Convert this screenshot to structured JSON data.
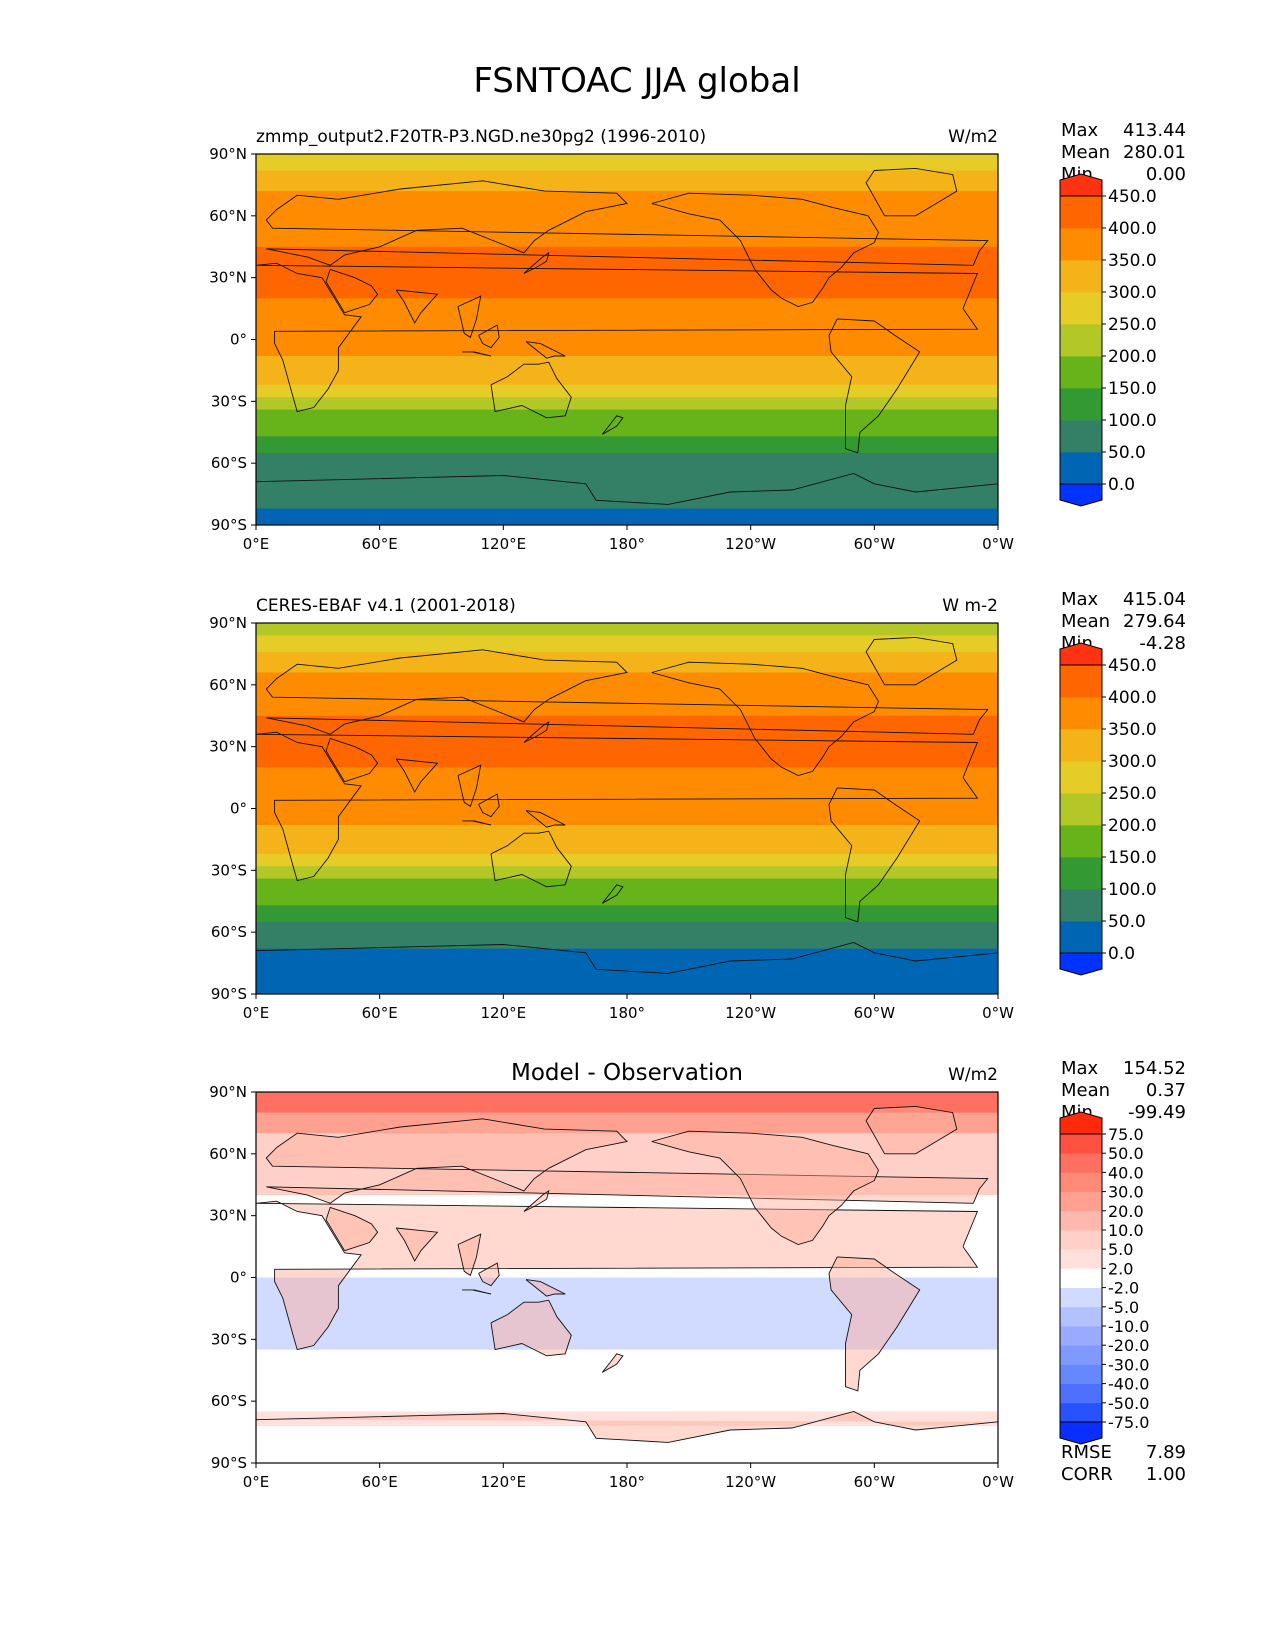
{
  "title": "FSNTOAC JJA global",
  "lat_labels": [
    "90°N",
    "60°N",
    "30°N",
    "0°",
    "30°S",
    "60°S",
    "90°S"
  ],
  "lon_labels": [
    "0°E",
    "60°E",
    "120°E",
    "180°",
    "120°W",
    "60°W",
    "0°W"
  ],
  "chart_data": [
    {
      "type": "heatmap",
      "panel": "model",
      "title": "zmmp_output2.F20TR-P3.NGD.ne30pg2 (1996-2010)",
      "units": "W/m2",
      "stats": [
        {
          "label": "Max",
          "value": "413.44"
        },
        {
          "label": "Mean",
          "value": "280.01"
        },
        {
          "label": "Min",
          "value": "0.00"
        }
      ],
      "colorbar": {
        "levels": [
          "0.0",
          "50.0",
          "100.0",
          "150.0",
          "200.0",
          "250.0",
          "300.0",
          "350.0",
          "400.0",
          "450.0"
        ],
        "colors": [
          "#0033ff",
          "#0066b3",
          "#338066",
          "#339933",
          "#66b31a",
          "#b3c726",
          "#e6cc26",
          "#f5b31a",
          "#ff8c00",
          "#ff6600",
          "#ff3311"
        ]
      },
      "zonal_band_values": [
        {
          "lat": [
            82,
            90
          ],
          "value": 275
        },
        {
          "lat": [
            72,
            82
          ],
          "value": 320
        },
        {
          "lat": [
            58,
            72
          ],
          "value": 360
        },
        {
          "lat": [
            45,
            58
          ],
          "value": 390
        },
        {
          "lat": [
            20,
            45
          ],
          "value": 410
        },
        {
          "lat": [
            8,
            20
          ],
          "value": 385
        },
        {
          "lat": [
            -8,
            8
          ],
          "value": 375
        },
        {
          "lat": [
            -15,
            -8
          ],
          "value": 340
        },
        {
          "lat": [
            -22,
            -15
          ],
          "value": 305
        },
        {
          "lat": [
            -28,
            -22
          ],
          "value": 270
        },
        {
          "lat": [
            -34,
            -28
          ],
          "value": 225
        },
        {
          "lat": [
            -40,
            -34
          ],
          "value": 185
        },
        {
          "lat": [
            -47,
            -40
          ],
          "value": 160
        },
        {
          "lat": [
            -55,
            -47
          ],
          "value": 120
        },
        {
          "lat": [
            -82,
            -55
          ],
          "value": 70
        },
        {
          "lat": [
            -90,
            -82
          ],
          "value": 20
        }
      ]
    },
    {
      "type": "heatmap",
      "panel": "observation",
      "title": "CERES-EBAF v4.1 (2001-2018)",
      "units": "W m-2",
      "stats": [
        {
          "label": "Max",
          "value": "415.04"
        },
        {
          "label": "Mean",
          "value": "279.64"
        },
        {
          "label": "Min",
          "value": "-4.28"
        }
      ],
      "colorbar": {
        "levels": [
          "0.0",
          "50.0",
          "100.0",
          "150.0",
          "200.0",
          "250.0",
          "300.0",
          "350.0",
          "400.0",
          "450.0"
        ],
        "colors": [
          "#0033ff",
          "#0066b3",
          "#338066",
          "#339933",
          "#66b31a",
          "#b3c726",
          "#e6cc26",
          "#f5b31a",
          "#ff8c00",
          "#ff6600",
          "#ff3311"
        ]
      },
      "zonal_band_values": [
        {
          "lat": [
            84,
            90
          ],
          "value": 235
        },
        {
          "lat": [
            76,
            84
          ],
          "value": 265
        },
        {
          "lat": [
            66,
            76
          ],
          "value": 320
        },
        {
          "lat": [
            56,
            66
          ],
          "value": 360
        },
        {
          "lat": [
            45,
            56
          ],
          "value": 390
        },
        {
          "lat": [
            20,
            45
          ],
          "value": 410
        },
        {
          "lat": [
            8,
            20
          ],
          "value": 385
        },
        {
          "lat": [
            -8,
            8
          ],
          "value": 375
        },
        {
          "lat": [
            -15,
            -8
          ],
          "value": 340
        },
        {
          "lat": [
            -22,
            -15
          ],
          "value": 305
        },
        {
          "lat": [
            -28,
            -22
          ],
          "value": 270
        },
        {
          "lat": [
            -34,
            -28
          ],
          "value": 225
        },
        {
          "lat": [
            -40,
            -34
          ],
          "value": 185
        },
        {
          "lat": [
            -47,
            -40
          ],
          "value": 160
        },
        {
          "lat": [
            -55,
            -47
          ],
          "value": 120
        },
        {
          "lat": [
            -68,
            -55
          ],
          "value": 70
        },
        {
          "lat": [
            -90,
            -68
          ],
          "value": 20
        }
      ]
    },
    {
      "type": "heatmap",
      "panel": "difference",
      "title": "Model - Observation",
      "units": "W/m2",
      "stats": [
        {
          "label": "Max",
          "value": "154.52"
        },
        {
          "label": "Mean",
          "value": "0.37"
        },
        {
          "label": "Min",
          "value": "-99.49"
        }
      ],
      "extra_stats": [
        {
          "label": "RMSE",
          "value": "7.89"
        },
        {
          "label": "CORR",
          "value": "1.00"
        }
      ],
      "colorbar": {
        "levels": [
          "-75.0",
          "-50.0",
          "-40.0",
          "-30.0",
          "-20.0",
          "-10.0",
          "-5.0",
          "-2.0",
          "2.0",
          "5.0",
          "10.0",
          "20.0",
          "30.0",
          "40.0",
          "50.0",
          "75.0"
        ],
        "colors": [
          "#0a2eff",
          "#2952ff",
          "#4d70ff",
          "#6688ff",
          "#8099ff",
          "#99aaff",
          "#b3c2ff",
          "#d1daff",
          "#ffffff",
          "#ffe0dc",
          "#ffd0c8",
          "#ffb8ad",
          "#ffa090",
          "#ff8a78",
          "#ff7060",
          "#ff5040",
          "#ff2a0a"
        ]
      },
      "zonal_band_values": [
        {
          "lat": [
            80,
            90
          ],
          "value": 45
        },
        {
          "lat": [
            70,
            80
          ],
          "value": 25
        },
        {
          "lat": [
            60,
            70
          ],
          "value": 8
        },
        {
          "lat": [
            40,
            60
          ],
          "value": 6
        },
        {
          "lat": [
            15,
            40
          ],
          "value": 0
        },
        {
          "lat": [
            0,
            15
          ],
          "value": 0
        },
        {
          "lat": [
            -10,
            0
          ],
          "value": -4
        },
        {
          "lat": [
            -35,
            -10
          ],
          "value": -3
        },
        {
          "lat": [
            -65,
            -35
          ],
          "value": 0
        },
        {
          "lat": [
            -72,
            -65
          ],
          "value": 3
        },
        {
          "lat": [
            -90,
            -72
          ],
          "value": 0
        }
      ]
    }
  ]
}
